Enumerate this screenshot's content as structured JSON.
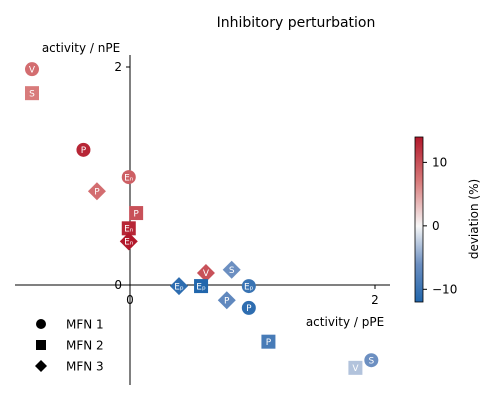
{
  "chart_data": {
    "type": "scatter",
    "title": "Inhibitory perturbation",
    "xlabel": "activity / pPE",
    "ylabel": "activity / nPE",
    "xlim": [
      -0.95,
      2.12
    ],
    "ylim": [
      -0.92,
      2.12
    ],
    "x_ticks": [
      0,
      2
    ],
    "y_ticks": [
      0,
      2
    ],
    "colorbar": {
      "label": "deviation (%)",
      "range": [
        -12,
        14
      ],
      "ticks": [
        10,
        0,
        -10
      ]
    },
    "legend": {
      "placement": "lower-left",
      "entries": [
        "MFN 1",
        "MFN 2",
        "MFN 3"
      ]
    },
    "points": [
      {
        "label": "V",
        "marker": "circle",
        "x": -0.8,
        "y": 1.98,
        "deviation": 8
      },
      {
        "label": "S",
        "marker": "square",
        "x": -0.8,
        "y": 1.76,
        "deviation": 7
      },
      {
        "label": "P",
        "marker": "circle",
        "x": -0.38,
        "y": 1.24,
        "deviation": 13
      },
      {
        "label": "P",
        "marker": "diamond",
        "x": -0.27,
        "y": 0.86,
        "deviation": 8
      },
      {
        "label": "Eₙ",
        "marker": "circle",
        "x": -0.01,
        "y": 0.99,
        "deviation": 9
      },
      {
        "label": "P",
        "marker": "square",
        "x": 0.05,
        "y": 0.66,
        "deviation": 10
      },
      {
        "label": "Eₙ",
        "marker": "square",
        "x": -0.01,
        "y": 0.52,
        "deviation": 13
      },
      {
        "label": "Eₙ",
        "marker": "diamond",
        "x": -0.01,
        "y": 0.4,
        "deviation": 14
      },
      {
        "label": "V",
        "marker": "diamond",
        "x": 0.62,
        "y": 0.11,
        "deviation": 10
      },
      {
        "label": "S",
        "marker": "diamond",
        "x": 0.83,
        "y": 0.14,
        "deviation": -6
      },
      {
        "label": "Eₚ",
        "marker": "diamond",
        "x": 0.4,
        "y": -0.01,
        "deviation": -11
      },
      {
        "label": "Eₚ",
        "marker": "square",
        "x": 0.58,
        "y": -0.01,
        "deviation": -12
      },
      {
        "label": "Eₚ",
        "marker": "circle",
        "x": 0.97,
        "y": -0.01,
        "deviation": -10
      },
      {
        "label": "P",
        "marker": "diamond",
        "x": 0.79,
        "y": -0.14,
        "deviation": -7
      },
      {
        "label": "P",
        "marker": "circle",
        "x": 0.97,
        "y": -0.21,
        "deviation": -11
      },
      {
        "label": "P",
        "marker": "square",
        "x": 1.13,
        "y": -0.52,
        "deviation": -9
      },
      {
        "label": "S",
        "marker": "circle",
        "x": 1.97,
        "y": -0.69,
        "deviation": -6
      },
      {
        "label": "V",
        "marker": "square",
        "x": 1.84,
        "y": -0.76,
        "deviation": -3
      }
    ]
  }
}
